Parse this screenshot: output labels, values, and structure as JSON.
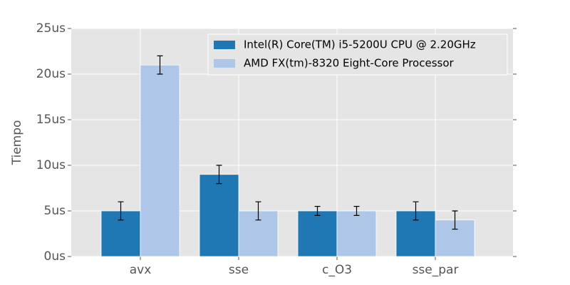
{
  "chart_data": {
    "type": "bar",
    "ylabel": "Tiempo",
    "categories": [
      "avx",
      "sse",
      "c_O3",
      "sse_par"
    ],
    "series": [
      {
        "name": "Intel(R) Core(TM) i5-5200U CPU @ 2.20GHz",
        "color": "#1f77b4",
        "values": [
          5,
          9,
          5,
          5
        ],
        "errors": [
          1,
          1,
          0.5,
          1
        ]
      },
      {
        "name": "AMD FX(tm)-8320 Eight-Core Processor",
        "color": "#aec7e8",
        "values": [
          21,
          5,
          5,
          4
        ],
        "errors": [
          1,
          1,
          0.5,
          1
        ]
      }
    ],
    "ylim": [
      0,
      25
    ],
    "yticks": [
      {
        "value": 0,
        "label": "0us"
      },
      {
        "value": 5,
        "label": "5us"
      },
      {
        "value": 10,
        "label": "10us"
      },
      {
        "value": 15,
        "label": "15us"
      },
      {
        "value": 20,
        "label": "20us"
      },
      {
        "value": 25,
        "label": "25us"
      }
    ],
    "grid": true,
    "legend": "upper-right"
  }
}
